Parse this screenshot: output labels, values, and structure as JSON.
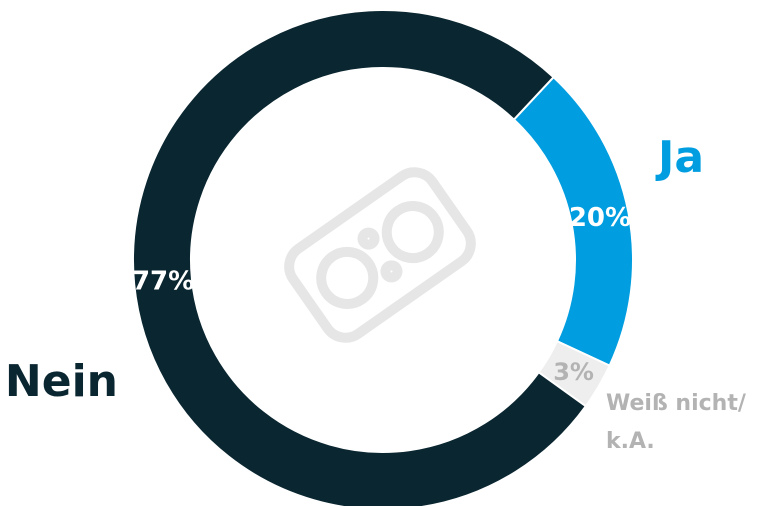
{
  "chart_data": {
    "type": "pie",
    "style": "donut",
    "categories": [
      "Ja",
      "Weiß nicht/\nk.A.",
      "Nein"
    ],
    "values": [
      20,
      3,
      77
    ],
    "value_labels": [
      "20%",
      "3%",
      "77%"
    ],
    "colors": [
      "#009ee0",
      "#eeeeee",
      "#0a2630"
    ],
    "label_colors": [
      "#009ee0",
      "#b3b3b3",
      "#0a2630"
    ],
    "value_label_colors": [
      "#ffffff",
      "#b3b3b3",
      "#ffffff"
    ]
  }
}
